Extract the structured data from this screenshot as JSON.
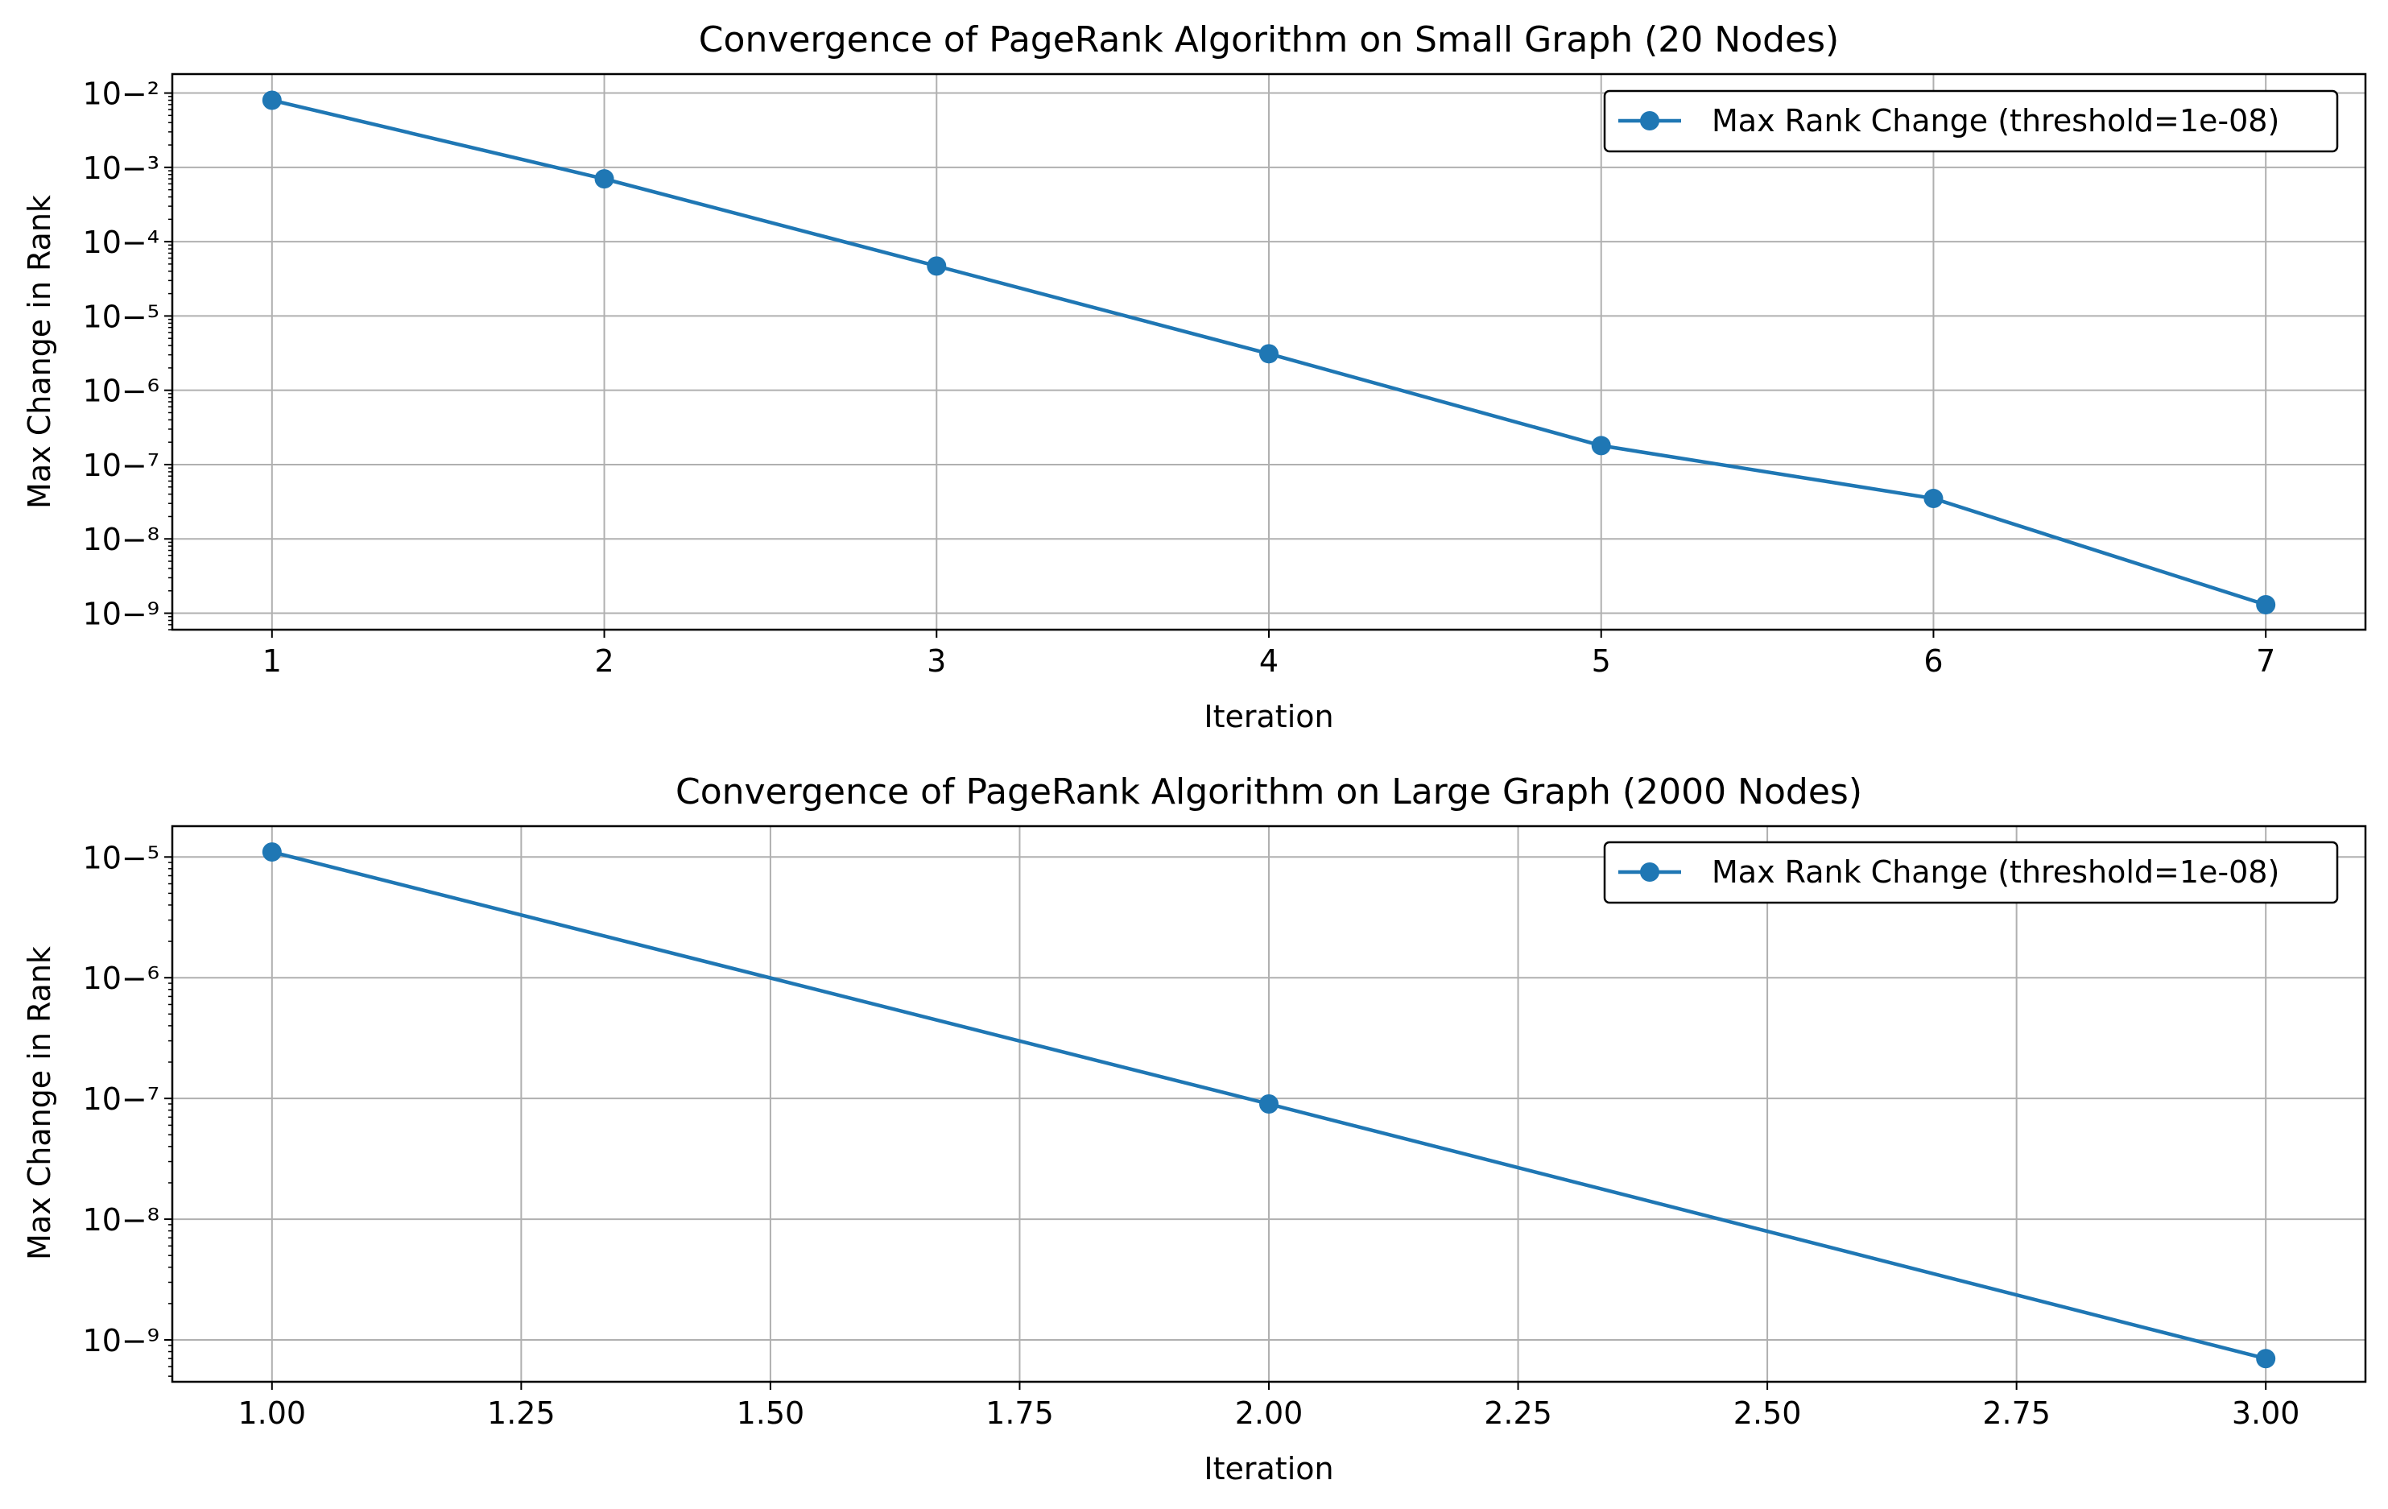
{
  "colors": {
    "series": "#1f77b4",
    "grid": "#b0b0b0",
    "axis": "#000000"
  },
  "chart_data": [
    {
      "type": "line",
      "title": "Convergence of PageRank Algorithm on Small Graph (20 Nodes)",
      "xlabel": "Iteration",
      "ylabel": "Max Change in Rank",
      "yscale": "log",
      "grid": true,
      "legend_position": "top-right",
      "xlim": [
        0.7,
        7.3
      ],
      "ylim": [
        6e-10,
        0.018
      ],
      "xticks": [
        1,
        2,
        3,
        4,
        5,
        6,
        7
      ],
      "xtick_labels": [
        "1",
        "2",
        "3",
        "4",
        "5",
        "6",
        "7"
      ],
      "yticks_exp": [
        -2,
        -3,
        -4,
        -5,
        -6,
        -7,
        -8,
        -9
      ],
      "series": [
        {
          "name": "Max Rank Change (threshold=1e-08)",
          "x": [
            1,
            2,
            3,
            4,
            5,
            6,
            7
          ],
          "y": [
            0.008,
            0.0007,
            4.7e-05,
            3.1e-06,
            1.8e-07,
            3.5e-08,
            1.3e-09
          ]
        }
      ]
    },
    {
      "type": "line",
      "title": "Convergence of PageRank Algorithm on Large Graph (2000 Nodes)",
      "xlabel": "Iteration",
      "ylabel": "Max Change in Rank",
      "yscale": "log",
      "grid": true,
      "legend_position": "top-right",
      "xlim": [
        0.9,
        3.1
      ],
      "ylim": [
        4.5e-10,
        1.8e-05
      ],
      "xticks": [
        1.0,
        1.25,
        1.5,
        1.75,
        2.0,
        2.25,
        2.5,
        2.75,
        3.0
      ],
      "xtick_labels": [
        "1.00",
        "1.25",
        "1.50",
        "1.75",
        "2.00",
        "2.25",
        "2.50",
        "2.75",
        "3.00"
      ],
      "yticks_exp": [
        -5,
        -6,
        -7,
        -8,
        -9
      ],
      "series": [
        {
          "name": "Max Rank Change (threshold=1e-08)",
          "x": [
            1,
            2,
            3
          ],
          "y": [
            1.1e-05,
            9e-08,
            7e-10
          ]
        }
      ]
    }
  ]
}
